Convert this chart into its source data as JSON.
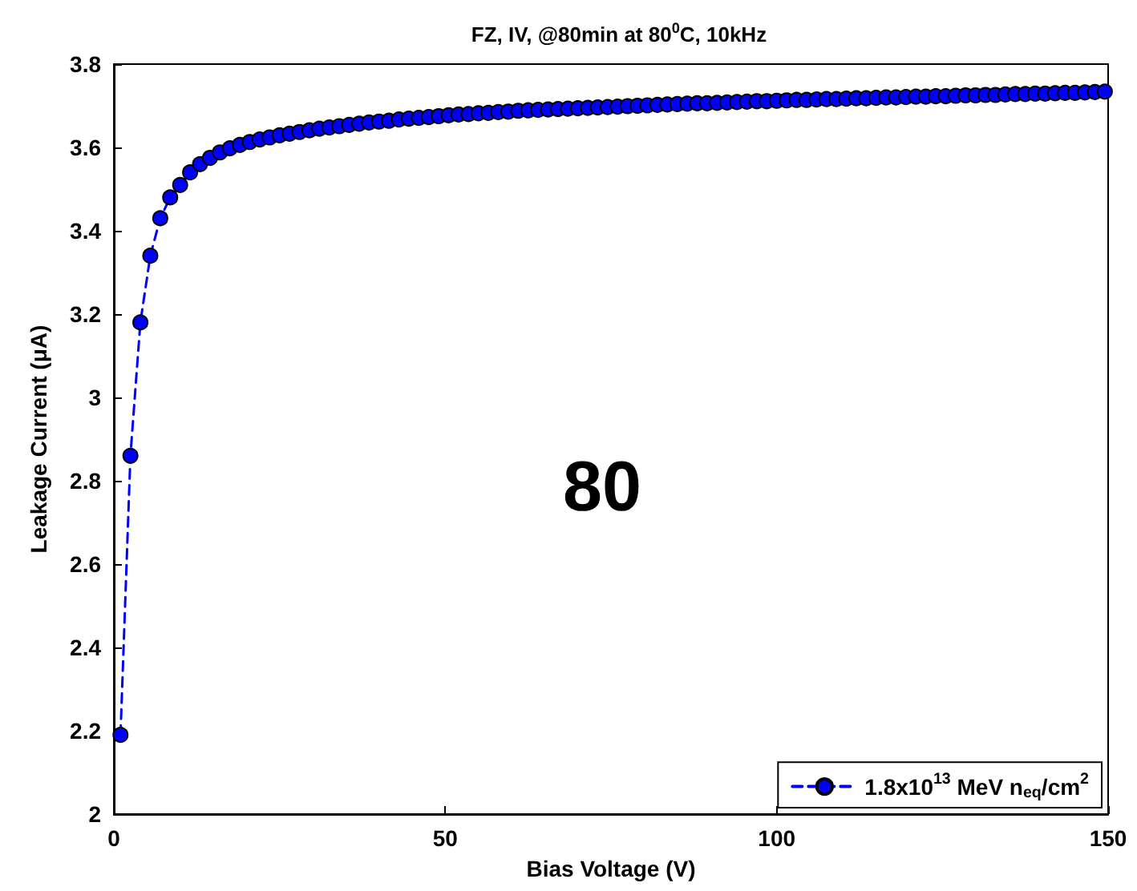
{
  "chart_data": {
    "type": "line",
    "title": "FZ, IV, @80min at 80$^{0}$C, 10kHz",
    "xlabel": "Bias Voltage (V)",
    "ylabel": "Leakage Current (μA)",
    "annotations": [
      "80"
    ],
    "x": [
      1,
      2.5,
      4,
      5.5,
      7,
      8.5,
      10,
      11.5,
      13,
      14.5,
      16,
      17.5,
      19,
      20.5,
      22,
      23.5,
      25,
      26.5,
      28,
      29.5,
      31,
      32.5,
      34,
      35.5,
      37,
      38.5,
      40,
      41.5,
      43,
      44.5,
      46,
      47.5,
      49,
      50.5,
      52,
      53.5,
      55,
      56.5,
      58,
      59.5,
      61,
      62.5,
      64,
      65.5,
      67,
      68.5,
      70,
      71.5,
      73,
      74.5,
      76,
      77.5,
      79,
      80.5,
      82,
      83.5,
      85,
      86.5,
      88,
      89.5,
      91,
      92.5,
      94,
      95.5,
      97,
      98.5,
      100,
      101.5,
      103,
      104.5,
      106,
      107.5,
      109,
      110.5,
      112,
      113.5,
      115,
      116.5,
      118,
      119.5,
      121,
      122.5,
      124,
      125.5,
      127,
      128.5,
      130,
      131.5,
      133,
      134.5,
      136,
      137.5,
      139,
      140.5,
      142,
      143.5,
      145,
      146.5,
      148,
      149.5
    ],
    "series": [
      {
        "name": "1.8x10$^{13}$ MeV n$_{eq}$/cm$^{2}$",
        "color": "#0000ff",
        "values": [
          2.19,
          2.86,
          3.18,
          3.34,
          3.43,
          3.48,
          3.51,
          3.54,
          3.56,
          3.575,
          3.588,
          3.598,
          3.606,
          3.613,
          3.619,
          3.624,
          3.629,
          3.633,
          3.637,
          3.641,
          3.645,
          3.648,
          3.651,
          3.654,
          3.657,
          3.66,
          3.662,
          3.664,
          3.667,
          3.669,
          3.671,
          3.673,
          3.675,
          3.677,
          3.679,
          3.68,
          3.682,
          3.683,
          3.685,
          3.686,
          3.688,
          3.689,
          3.69,
          3.691,
          3.692,
          3.693,
          3.694,
          3.695,
          3.696,
          3.697,
          3.698,
          3.699,
          3.7,
          3.701,
          3.702,
          3.703,
          3.704,
          3.705,
          3.706,
          3.706,
          3.707,
          3.708,
          3.709,
          3.71,
          3.711,
          3.711,
          3.712,
          3.713,
          3.714,
          3.714,
          3.715,
          3.716,
          3.716,
          3.717,
          3.718,
          3.718,
          3.719,
          3.72,
          3.72,
          3.721,
          3.722,
          3.722,
          3.723,
          3.723,
          3.724,
          3.725,
          3.725,
          3.726,
          3.726,
          3.727,
          3.728,
          3.728,
          3.729,
          3.729,
          3.73,
          3.731,
          3.731,
          3.732,
          3.733,
          3.734
        ]
      }
    ],
    "xlim": [
      0,
      150
    ],
    "xticks": [
      0,
      50,
      100,
      150
    ],
    "ylim": [
      2,
      3.8
    ],
    "yticks": [
      2,
      2.2,
      2.4,
      2.6,
      2.8,
      3,
      3.2,
      3.4,
      3.6,
      3.8
    ],
    "grid": false,
    "legend": "bottom right",
    "marker": "circle",
    "line_style": "dashed"
  }
}
